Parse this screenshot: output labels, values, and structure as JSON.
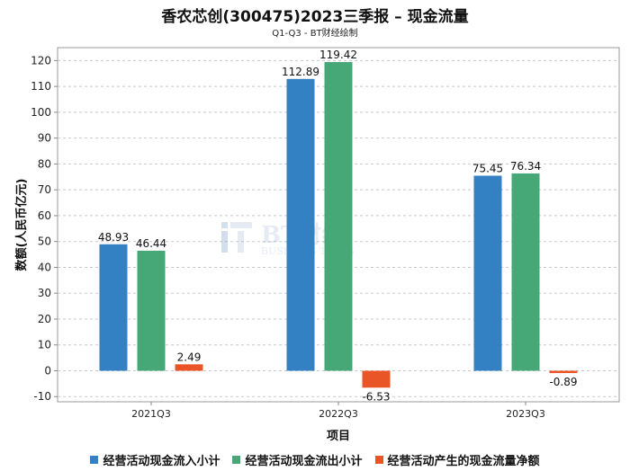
{
  "chart_data": {
    "type": "bar",
    "title": "香农芯创(300475)2023三季报 – 现金流量",
    "subtitle": "Q1-Q3 - BT财经绘制",
    "xlabel": "项目",
    "ylabel": "数额(人民币亿元)",
    "categories": [
      "2021Q3",
      "2022Q3",
      "2023Q3"
    ],
    "series": [
      {
        "name": "经营活动现金流入小计",
        "color": "#3380c2",
        "values": [
          48.93,
          112.89,
          75.45
        ],
        "labels": [
          "48.93",
          "112.89",
          "75.45"
        ]
      },
      {
        "name": "经营活动现金流出小计",
        "color": "#45a876",
        "values": [
          46.44,
          119.42,
          76.34
        ],
        "labels": [
          "46.44",
          "119.42",
          "76.34"
        ]
      },
      {
        "name": "经营活动产生的现金流量净额",
        "color": "#ea5527",
        "values": [
          2.49,
          -6.53,
          -0.89
        ],
        "labels": [
          "2.49",
          "-6.53",
          "-0.89"
        ]
      }
    ],
    "ylim": [
      -12,
      125
    ],
    "yticks": [
      -10,
      0,
      10,
      20,
      30,
      40,
      50,
      60,
      70,
      80,
      90,
      100,
      110,
      120
    ],
    "grid": true,
    "legend_position": "bottom"
  },
  "watermark": {
    "main": "BT财经",
    "sub": "BUSINESS TIMES"
  }
}
